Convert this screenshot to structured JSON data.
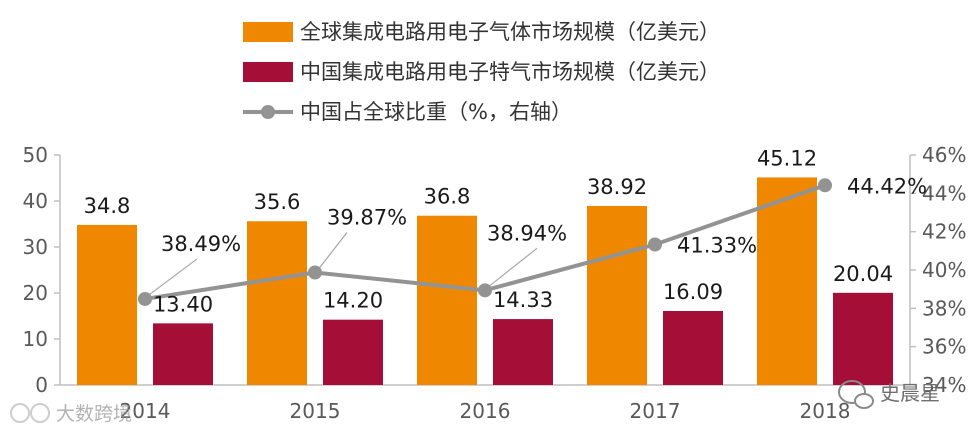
{
  "chart_data": {
    "type": "bar",
    "categories": [
      "2014",
      "2015",
      "2016",
      "2017",
      "2018"
    ],
    "series": [
      {
        "name": "全球集成电路用电子气体市场规模（亿美元）",
        "type": "bar",
        "axis": "left",
        "color": "#F08700",
        "values": [
          34.8,
          35.6,
          36.8,
          38.92,
          45.12
        ],
        "labels": [
          "34.8",
          "35.6",
          "36.8",
          "38.92",
          "45.12"
        ]
      },
      {
        "name": "中国集成电路用电子特气市场规模（亿美元）",
        "type": "bar",
        "axis": "left",
        "color": "#A50E36",
        "values": [
          13.4,
          14.2,
          14.33,
          16.09,
          20.04
        ],
        "labels": [
          "13.40",
          "14.20",
          "14.33",
          "16.09",
          "20.04"
        ]
      },
      {
        "name": "中国占全球比重（%，右轴）",
        "type": "line",
        "axis": "right",
        "color": "#939393",
        "values": [
          38.49,
          39.87,
          38.94,
          41.33,
          44.42
        ],
        "labels": [
          "38.49%",
          "39.87%",
          "38.94%",
          "41.33%",
          "44.42%"
        ]
      }
    ],
    "y_left": {
      "ylim": [
        0,
        50
      ],
      "ticks": [
        0,
        10,
        20,
        30,
        40,
        50
      ],
      "tick_labels": [
        "0",
        "10",
        "20",
        "30",
        "40",
        "50"
      ]
    },
    "y_right": {
      "ylim": [
        34,
        46
      ],
      "ticks": [
        34,
        36,
        38,
        40,
        42,
        44,
        46
      ],
      "tick_labels": [
        "34%",
        "36%",
        "38%",
        "40%",
        "42%",
        "44%",
        "46%"
      ]
    },
    "legend_position": "top-center",
    "grid": false
  },
  "watermarks": {
    "left_text": "大数跨境",
    "right_text": "史晨星"
  }
}
